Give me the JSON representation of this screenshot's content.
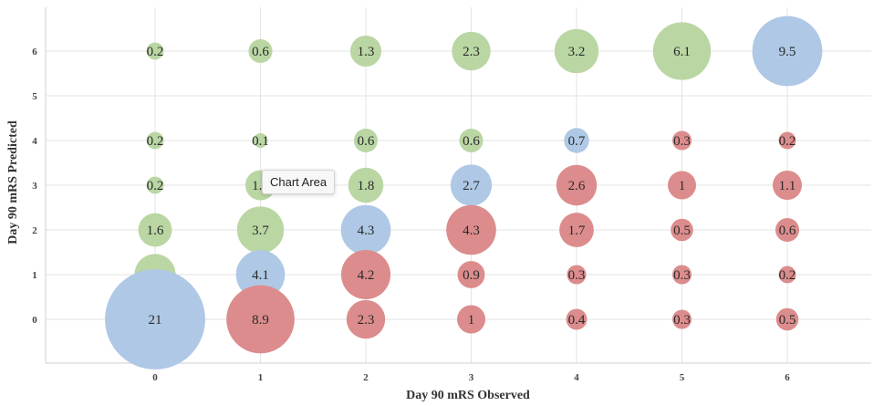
{
  "chart_data": {
    "type": "scatter",
    "subtype": "bubble",
    "title": "",
    "xlabel": "Day 90 mRS Observed",
    "ylabel": "Day 90 mRS Predicted",
    "xlim": [
      -1,
      7
    ],
    "ylim": [
      -1,
      7
    ],
    "x_ticks": [
      "0",
      "1",
      "2",
      "3",
      "4",
      "5",
      "6"
    ],
    "y_ticks": [
      "0",
      "1",
      "2",
      "3",
      "4",
      "5",
      "6"
    ],
    "grid": true,
    "legend": "none",
    "colors": {
      "green": "#b9d6a3",
      "blue": "#aec8e6",
      "red": "#dc8c8c"
    },
    "points": [
      {
        "x": 0,
        "y": 6,
        "value": 0.2,
        "label": "0.2",
        "color": "green"
      },
      {
        "x": 1,
        "y": 6,
        "value": 0.6,
        "label": "0.6",
        "color": "green"
      },
      {
        "x": 2,
        "y": 6,
        "value": 1.3,
        "label": "1.3",
        "color": "green"
      },
      {
        "x": 3,
        "y": 6,
        "value": 2.3,
        "label": "2.3",
        "color": "green"
      },
      {
        "x": 4,
        "y": 6,
        "value": 3.2,
        "label": "3.2",
        "color": "green"
      },
      {
        "x": 5,
        "y": 6,
        "value": 6.1,
        "label": "6.1",
        "color": "green"
      },
      {
        "x": 6,
        "y": 6,
        "value": 9.5,
        "label": "9.5",
        "color": "blue"
      },
      {
        "x": 0,
        "y": 4,
        "value": 0.2,
        "label": "0.2",
        "color": "green"
      },
      {
        "x": 1,
        "y": 4,
        "value": 0.1,
        "label": "0.1",
        "color": "green"
      },
      {
        "x": 2,
        "y": 4,
        "value": 0.6,
        "label": "0.6",
        "color": "green"
      },
      {
        "x": 3,
        "y": 4,
        "value": 0.6,
        "label": "0.6",
        "color": "green"
      },
      {
        "x": 4,
        "y": 4,
        "value": 0.7,
        "label": "0.7",
        "color": "blue"
      },
      {
        "x": 5,
        "y": 4,
        "value": 0.3,
        "label": "0.3",
        "color": "red"
      },
      {
        "x": 6,
        "y": 4,
        "value": 0.2,
        "label": "0.2",
        "color": "red"
      },
      {
        "x": 0,
        "y": 3,
        "value": 0.2,
        "label": "0.2",
        "color": "green"
      },
      {
        "x": 1,
        "y": 3,
        "value": 1.2,
        "label": "1.2",
        "color": "green"
      },
      {
        "x": 2,
        "y": 3,
        "value": 1.8,
        "label": "1.8",
        "color": "green"
      },
      {
        "x": 3,
        "y": 3,
        "value": 2.7,
        "label": "2.7",
        "color": "blue"
      },
      {
        "x": 4,
        "y": 3,
        "value": 2.6,
        "label": "2.6",
        "color": "red"
      },
      {
        "x": 5,
        "y": 3,
        "value": 1,
        "label": "1",
        "color": "red"
      },
      {
        "x": 6,
        "y": 3,
        "value": 1.1,
        "label": "1.1",
        "color": "red"
      },
      {
        "x": 0,
        "y": 2,
        "value": 1.6,
        "label": "1.6",
        "color": "green"
      },
      {
        "x": 1,
        "y": 2,
        "value": 3.7,
        "label": "3.7",
        "color": "green"
      },
      {
        "x": 2,
        "y": 2,
        "value": 4.3,
        "label": "4.3",
        "color": "blue"
      },
      {
        "x": 3,
        "y": 2,
        "value": 4.3,
        "label": "4.3",
        "color": "red"
      },
      {
        "x": 4,
        "y": 2,
        "value": 1.7,
        "label": "1.7",
        "color": "red"
      },
      {
        "x": 5,
        "y": 2,
        "value": 0.5,
        "label": "0.5",
        "color": "red"
      },
      {
        "x": 6,
        "y": 2,
        "value": 0.6,
        "label": "0.6",
        "color": "red"
      },
      {
        "x": 0,
        "y": 1,
        "value": 2.7,
        "label": "2.7",
        "color": "green"
      },
      {
        "x": 1,
        "y": 1,
        "value": 4.1,
        "label": "4.1",
        "color": "blue"
      },
      {
        "x": 2,
        "y": 1,
        "value": 4.2,
        "label": "4.2",
        "color": "red"
      },
      {
        "x": 3,
        "y": 1,
        "value": 0.9,
        "label": "0.9",
        "color": "red"
      },
      {
        "x": 4,
        "y": 1,
        "value": 0.3,
        "label": "0.3",
        "color": "red"
      },
      {
        "x": 5,
        "y": 1,
        "value": 0.3,
        "label": "0.3",
        "color": "red"
      },
      {
        "x": 6,
        "y": 1,
        "value": 0.2,
        "label": "0.2",
        "color": "red"
      },
      {
        "x": 0,
        "y": 0,
        "value": 21,
        "label": "21",
        "color": "blue"
      },
      {
        "x": 1,
        "y": 0,
        "value": 8.9,
        "label": "8.9",
        "color": "red"
      },
      {
        "x": 2,
        "y": 0,
        "value": 2.3,
        "label": "2.3",
        "color": "red"
      },
      {
        "x": 3,
        "y": 0,
        "value": 1,
        "label": "1",
        "color": "red"
      },
      {
        "x": 4,
        "y": 0,
        "value": 0.4,
        "label": "0.4",
        "color": "red"
      },
      {
        "x": 5,
        "y": 0,
        "value": 0.3,
        "label": "0.3",
        "color": "red"
      },
      {
        "x": 6,
        "y": 0,
        "value": 0.5,
        "label": "0.5",
        "color": "red"
      }
    ]
  },
  "tooltip": {
    "text": "Chart Area"
  }
}
